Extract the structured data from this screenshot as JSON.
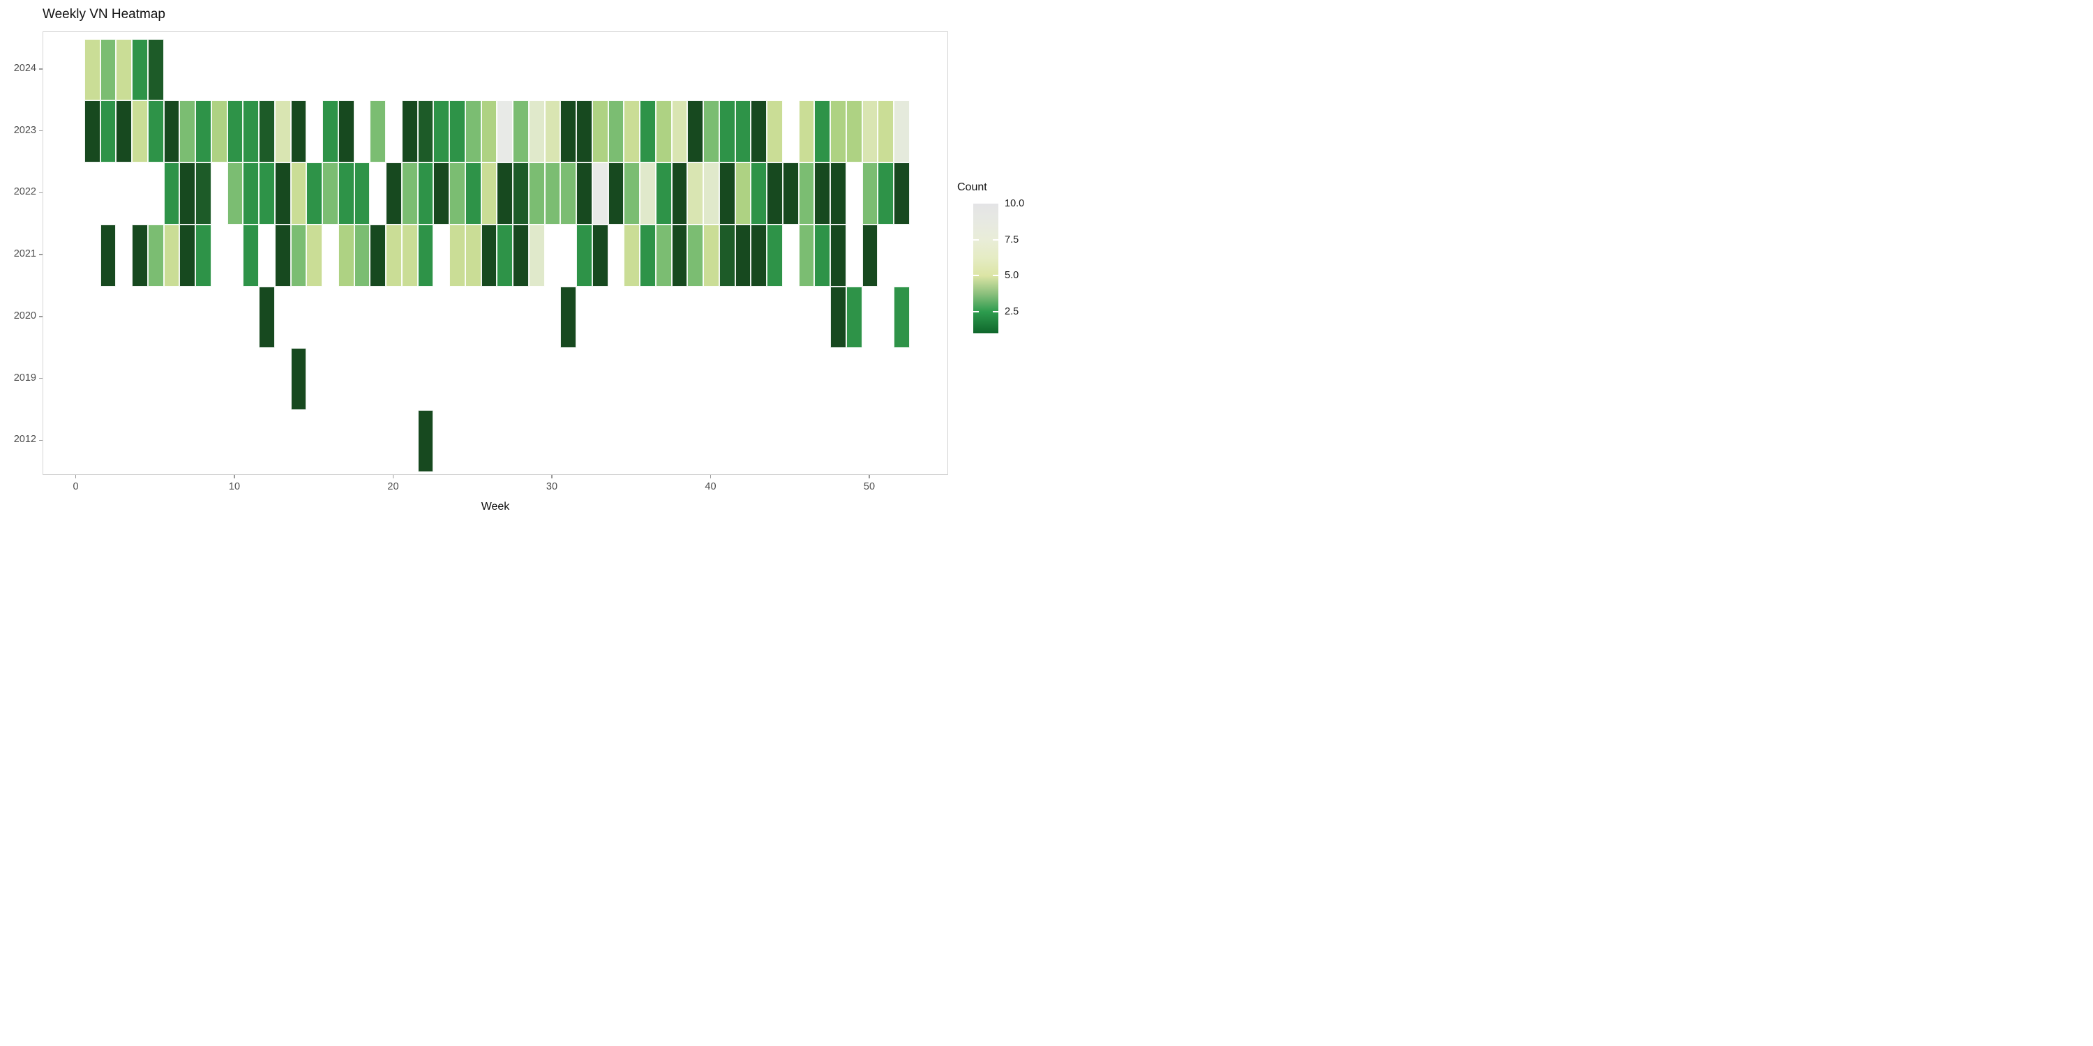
{
  "chart_data": {
    "type": "heatmap",
    "title": "Weekly VN Heatmap",
    "xlabel": "Week",
    "x_ticks": [
      0,
      10,
      20,
      30,
      40,
      50
    ],
    "x_axis_range": [
      -2.5,
      55.5
    ],
    "years": [
      "2024",
      "2023",
      "2022",
      "2021",
      "2020",
      "2019",
      "2012"
    ],
    "grid": "off",
    "legend": {
      "title": "Count",
      "position": "right",
      "domain": [
        1,
        10
      ],
      "ticks": [
        {
          "value": 10,
          "label": "10.0"
        },
        {
          "value": 7.5,
          "label": "7.5"
        },
        {
          "value": 5,
          "label": "5.0"
        },
        {
          "value": 2.5,
          "label": "2.5"
        }
      ]
    },
    "color_scale": {
      "description": "reversed greens: low count = dark green, high count = light gray",
      "stops": [
        [
          1,
          "#17491f"
        ],
        [
          2,
          "#1d5b28"
        ],
        [
          3,
          "#2e9348"
        ],
        [
          4,
          "#7bbd72"
        ],
        [
          4.5,
          "#aed283"
        ],
        [
          5,
          "#cadd96"
        ],
        [
          6,
          "#d9e5b2"
        ],
        [
          7,
          "#e0e9cb"
        ],
        [
          8,
          "#e5eadc"
        ],
        [
          9,
          "#e8eae7"
        ],
        [
          10,
          "#e6e6e9"
        ]
      ],
      "legend_gradient_stops": [
        [
          0,
          "#e4e4e6"
        ],
        [
          13.9,
          "#e7e9e2"
        ],
        [
          27.8,
          "#e9edd8"
        ],
        [
          41.7,
          "#e5ecc4"
        ],
        [
          55.6,
          "#dce5a5"
        ],
        [
          69.4,
          "#8cc07d"
        ],
        [
          83.3,
          "#2d9c4e"
        ],
        [
          100,
          "#0f662b"
        ]
      ]
    },
    "series": [
      {
        "year": "2024",
        "cells": [
          [
            1,
            5
          ],
          [
            2,
            4
          ],
          [
            3,
            5
          ],
          [
            4,
            3
          ],
          [
            5,
            2
          ]
        ]
      },
      {
        "year": "2023",
        "cells": [
          [
            1,
            1
          ],
          [
            2,
            3
          ],
          [
            3,
            1
          ],
          [
            4,
            5
          ],
          [
            5,
            3
          ],
          [
            6,
            1
          ],
          [
            7,
            4
          ],
          [
            8,
            3
          ],
          [
            9,
            4.5
          ],
          [
            10,
            3
          ],
          [
            11,
            3
          ],
          [
            12,
            2
          ],
          [
            13,
            6
          ],
          [
            14,
            1
          ],
          [
            16,
            3
          ],
          [
            17,
            1
          ],
          [
            19,
            4
          ],
          [
            21,
            1
          ],
          [
            22,
            2
          ],
          [
            23,
            3
          ],
          [
            24,
            3
          ],
          [
            25,
            4
          ],
          [
            26,
            4.5
          ],
          [
            27,
            9
          ],
          [
            28,
            4
          ],
          [
            29,
            7
          ],
          [
            30,
            6
          ],
          [
            31,
            1
          ],
          [
            32,
            1
          ],
          [
            33,
            4.5
          ],
          [
            34,
            4
          ],
          [
            35,
            5
          ],
          [
            36,
            3
          ],
          [
            37,
            4.5
          ],
          [
            38,
            6
          ],
          [
            39,
            1
          ],
          [
            40,
            4
          ],
          [
            41,
            3
          ],
          [
            42,
            3
          ],
          [
            43,
            1
          ],
          [
            44,
            5
          ],
          [
            46,
            5
          ],
          [
            47,
            3
          ],
          [
            48,
            4.5
          ],
          [
            49,
            4.5
          ],
          [
            50,
            6
          ],
          [
            51,
            5
          ],
          [
            52,
            8
          ]
        ]
      },
      {
        "year": "2022",
        "cells": [
          [
            6,
            3
          ],
          [
            7,
            1
          ],
          [
            8,
            2
          ],
          [
            10,
            4
          ],
          [
            11,
            3
          ],
          [
            12,
            3
          ],
          [
            13,
            1
          ],
          [
            14,
            5
          ],
          [
            15,
            3
          ],
          [
            16,
            4
          ],
          [
            17,
            3
          ],
          [
            18,
            3
          ],
          [
            20,
            1
          ],
          [
            21,
            4
          ],
          [
            22,
            3
          ],
          [
            23,
            1
          ],
          [
            24,
            4
          ],
          [
            25,
            3
          ],
          [
            26,
            5
          ],
          [
            27,
            1
          ],
          [
            28,
            2
          ],
          [
            29,
            4
          ],
          [
            30,
            4
          ],
          [
            31,
            4
          ],
          [
            32,
            1
          ],
          [
            33,
            9
          ],
          [
            34,
            1
          ],
          [
            35,
            4
          ],
          [
            36,
            7
          ],
          [
            37,
            3
          ],
          [
            38,
            1
          ],
          [
            39,
            6
          ],
          [
            40,
            7
          ],
          [
            41,
            1
          ],
          [
            42,
            4.5
          ],
          [
            43,
            3
          ],
          [
            44,
            1
          ],
          [
            45,
            1
          ],
          [
            46,
            4
          ],
          [
            47,
            1
          ],
          [
            48,
            1
          ],
          [
            50,
            4
          ],
          [
            51,
            3
          ],
          [
            52,
            1
          ]
        ]
      },
      {
        "year": "2021",
        "cells": [
          [
            2,
            1
          ],
          [
            4,
            1
          ],
          [
            5,
            4
          ],
          [
            6,
            5
          ],
          [
            7,
            1
          ],
          [
            8,
            3
          ],
          [
            11,
            3
          ],
          [
            13,
            1
          ],
          [
            14,
            4
          ],
          [
            15,
            5
          ],
          [
            17,
            4.5
          ],
          [
            18,
            4
          ],
          [
            19,
            1
          ],
          [
            20,
            5
          ],
          [
            21,
            5
          ],
          [
            22,
            3
          ],
          [
            24,
            5
          ],
          [
            25,
            5
          ],
          [
            26,
            1
          ],
          [
            27,
            3
          ],
          [
            28,
            1
          ],
          [
            29,
            7
          ],
          [
            32,
            3
          ],
          [
            33,
            1
          ],
          [
            35,
            5
          ],
          [
            36,
            3
          ],
          [
            37,
            4
          ],
          [
            38,
            1
          ],
          [
            39,
            4
          ],
          [
            40,
            5
          ],
          [
            41,
            2
          ],
          [
            42,
            1
          ],
          [
            43,
            1
          ],
          [
            44,
            3
          ],
          [
            46,
            4
          ],
          [
            47,
            3
          ],
          [
            48,
            1
          ],
          [
            50,
            1
          ]
        ]
      },
      {
        "year": "2020",
        "cells": [
          [
            12,
            1
          ],
          [
            31,
            1
          ],
          [
            48,
            1
          ],
          [
            49,
            3
          ],
          [
            52,
            3
          ]
        ]
      },
      {
        "year": "2019",
        "cells": [
          [
            14,
            1
          ]
        ]
      },
      {
        "year": "2012",
        "cells": [
          [
            22,
            1
          ]
        ]
      }
    ]
  }
}
